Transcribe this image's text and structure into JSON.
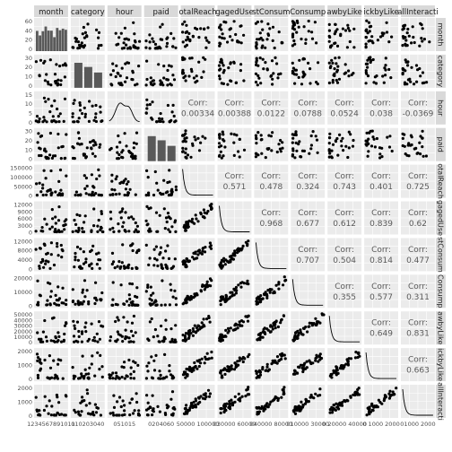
{
  "chart_data": {
    "type": "scatter",
    "variables": [
      "month",
      "category",
      "hour",
      "paid",
      "totalReach",
      "engagedUsers",
      "postConsumers",
      "postConsumptions",
      "likedPageAndEngaged",
      "clickedbyLike",
      "totalInteractions"
    ],
    "column_strip_labels": [
      "month",
      "category",
      "hour",
      "paid",
      "otalReach",
      "gagedUse",
      "stConsum",
      "Consump",
      "awbyLike",
      "ickbyLike",
      "allInteracti"
    ],
    "row_strip_labels": [
      "month",
      "category",
      "hour",
      "paid",
      "otalReach",
      "gagedUse",
      "stConsum",
      "Consump",
      "awbyLike",
      "ickbyLike",
      "allInteracti"
    ],
    "corr_label": "Corr:",
    "correlations": [
      {
        "row": 2,
        "col": 4,
        "value": "0.00334"
      },
      {
        "row": 2,
        "col": 5,
        "value": "0.00388"
      },
      {
        "row": 2,
        "col": 6,
        "value": "0.0122"
      },
      {
        "row": 2,
        "col": 7,
        "value": "0.0788"
      },
      {
        "row": 2,
        "col": 8,
        "value": "0.0524"
      },
      {
        "row": 2,
        "col": 9,
        "value": "0.038"
      },
      {
        "row": 2,
        "col": 10,
        "value": "-0.0369"
      },
      {
        "row": 4,
        "col": 5,
        "value": "0.571"
      },
      {
        "row": 4,
        "col": 6,
        "value": "0.478"
      },
      {
        "row": 4,
        "col": 7,
        "value": "0.324"
      },
      {
        "row": 4,
        "col": 8,
        "value": "0.743"
      },
      {
        "row": 4,
        "col": 9,
        "value": "0.401"
      },
      {
        "row": 4,
        "col": 10,
        "value": "0.725"
      },
      {
        "row": 5,
        "col": 6,
        "value": "0.968"
      },
      {
        "row": 5,
        "col": 7,
        "value": "0.677"
      },
      {
        "row": 5,
        "col": 8,
        "value": "0.612"
      },
      {
        "row": 5,
        "col": 9,
        "value": "0.839"
      },
      {
        "row": 5,
        "col": 10,
        "value": "0.62"
      },
      {
        "row": 6,
        "col": 7,
        "value": "0.707"
      },
      {
        "row": 6,
        "col": 8,
        "value": "0.504"
      },
      {
        "row": 6,
        "col": 9,
        "value": "0.814"
      },
      {
        "row": 6,
        "col": 10,
        "value": "0.477"
      },
      {
        "row": 7,
        "col": 8,
        "value": "0.355"
      },
      {
        "row": 7,
        "col": 9,
        "value": "0.577"
      },
      {
        "row": 7,
        "col": 10,
        "value": "0.311"
      },
      {
        "row": 8,
        "col": 9,
        "value": "0.649"
      },
      {
        "row": 8,
        "col": 10,
        "value": "0.831"
      },
      {
        "row": 9,
        "col": 10,
        "value": "0.663"
      }
    ],
    "y_axis_ticks": [
      [
        "60",
        "40",
        "20",
        "0"
      ],
      [
        "30",
        "20",
        "10",
        "0"
      ],
      [
        "15",
        "10",
        "5",
        "0"
      ],
      [
        "30",
        "20",
        "10",
        "0"
      ],
      [
        "150000",
        "100000",
        "50000",
        "0"
      ],
      [
        "12000",
        "9000",
        "6000",
        "3000",
        "0"
      ],
      [
        "12000",
        "8000",
        "4000",
        "0"
      ],
      [
        "20000",
        "10000",
        "0"
      ],
      [
        "50000",
        "40000",
        "30000",
        "20000",
        "10000",
        "0"
      ],
      [
        "2000",
        "1000",
        "0"
      ],
      [
        "2000",
        "1000",
        "0"
      ]
    ],
    "x_axis_ticks": [
      "1234567891011",
      "010203040",
      "051015",
      "0204060",
      "50000 100000",
      "030000 60000",
      "040000 80000",
      "010000 30000",
      "0 20000 40000",
      "0 1000 2000",
      "01000 2000"
    ],
    "grid": true,
    "panel_background": "#ebebeb",
    "strip_background": "#d9d9d9",
    "point_color": "#000000"
  }
}
